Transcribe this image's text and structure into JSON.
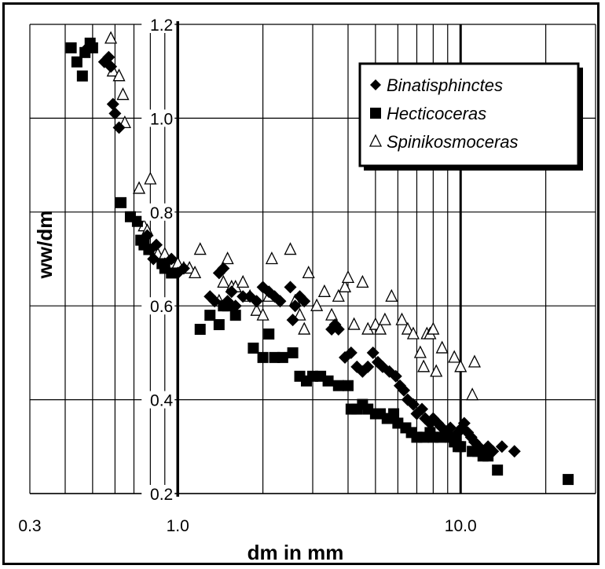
{
  "chart_data": {
    "type": "scatter",
    "x_scale": "log",
    "xlim": [
      0.3,
      30
    ],
    "ylim": [
      0.2,
      1.2
    ],
    "x_ticks": [
      {
        "value": 0.3,
        "label": "0.3"
      },
      {
        "value": 1.0,
        "label": "1.0"
      },
      {
        "value": 10.0,
        "label": "10.0"
      }
    ],
    "y_ticks": [
      {
        "value": 0.2,
        "label": "0.2"
      },
      {
        "value": 0.4,
        "label": "0.4"
      },
      {
        "value": 0.6,
        "label": "0.6"
      },
      {
        "value": 0.8,
        "label": "0.8"
      },
      {
        "value": 1.0,
        "label": "1.0"
      },
      {
        "value": 1.2,
        "label": "1.2"
      }
    ],
    "xlabel": "dm in mm",
    "ylabel": "ww/dm",
    "grid": true,
    "legend_position": "top-right",
    "series": [
      {
        "name": "Binatisphinctes",
        "marker": "diamond",
        "color": "#000000",
        "points": [
          [
            0.48,
            1.15
          ],
          [
            0.55,
            1.12
          ],
          [
            0.57,
            1.13
          ],
          [
            0.58,
            1.11
          ],
          [
            0.59,
            1.03
          ],
          [
            0.6,
            1.01
          ],
          [
            0.62,
            0.98
          ],
          [
            0.78,
            0.75
          ],
          [
            0.8,
            0.72
          ],
          [
            0.82,
            0.7
          ],
          [
            0.84,
            0.73
          ],
          [
            0.9,
            0.69
          ],
          [
            0.95,
            0.7
          ],
          [
            1.0,
            0.67
          ],
          [
            1.05,
            0.68
          ],
          [
            1.3,
            0.62
          ],
          [
            1.35,
            0.61
          ],
          [
            1.4,
            0.67
          ],
          [
            1.45,
            0.68
          ],
          [
            1.5,
            0.61
          ],
          [
            1.55,
            0.63
          ],
          [
            1.6,
            0.6
          ],
          [
            1.7,
            0.62
          ],
          [
            1.8,
            0.62
          ],
          [
            1.9,
            0.61
          ],
          [
            2.0,
            0.64
          ],
          [
            2.1,
            0.63
          ],
          [
            2.2,
            0.62
          ],
          [
            2.3,
            0.61
          ],
          [
            2.5,
            0.64
          ],
          [
            2.55,
            0.57
          ],
          [
            2.6,
            0.6
          ],
          [
            2.7,
            0.62
          ],
          [
            2.8,
            0.61
          ],
          [
            3.5,
            0.55
          ],
          [
            3.6,
            0.56
          ],
          [
            3.7,
            0.55
          ],
          [
            3.9,
            0.49
          ],
          [
            4.1,
            0.5
          ],
          [
            4.3,
            0.47
          ],
          [
            4.5,
            0.46
          ],
          [
            4.7,
            0.47
          ],
          [
            4.9,
            0.5
          ],
          [
            5.1,
            0.48
          ],
          [
            5.3,
            0.47
          ],
          [
            5.6,
            0.46
          ],
          [
            5.9,
            0.45
          ],
          [
            6.1,
            0.43
          ],
          [
            6.3,
            0.42
          ],
          [
            6.5,
            0.4
          ],
          [
            6.8,
            0.39
          ],
          [
            7.0,
            0.37
          ],
          [
            7.3,
            0.38
          ],
          [
            7.5,
            0.36
          ],
          [
            7.8,
            0.35
          ],
          [
            8.0,
            0.36
          ],
          [
            8.3,
            0.35
          ],
          [
            8.6,
            0.34
          ],
          [
            8.9,
            0.33
          ],
          [
            9.2,
            0.34
          ],
          [
            9.5,
            0.32
          ],
          [
            9.8,
            0.33
          ],
          [
            10.1,
            0.34
          ],
          [
            10.3,
            0.35
          ],
          [
            10.6,
            0.33
          ],
          [
            10.9,
            0.32
          ],
          [
            11.2,
            0.31
          ],
          [
            11.6,
            0.3
          ],
          [
            12.0,
            0.29
          ],
          [
            12.5,
            0.3
          ],
          [
            13.0,
            0.29
          ],
          [
            14.0,
            0.3
          ],
          [
            15.5,
            0.29
          ]
        ]
      },
      {
        "name": "Hecticoceras",
        "marker": "square",
        "color": "#000000",
        "points": [
          [
            0.42,
            1.15
          ],
          [
            0.44,
            1.12
          ],
          [
            0.46,
            1.09
          ],
          [
            0.47,
            1.14
          ],
          [
            0.49,
            1.16
          ],
          [
            0.5,
            1.15
          ],
          [
            0.63,
            0.82
          ],
          [
            0.68,
            0.79
          ],
          [
            0.72,
            0.78
          ],
          [
            0.74,
            0.74
          ],
          [
            0.76,
            0.73
          ],
          [
            0.79,
            0.72
          ],
          [
            0.88,
            0.69
          ],
          [
            0.9,
            0.68
          ],
          [
            0.95,
            0.67
          ],
          [
            1.2,
            0.55
          ],
          [
            1.3,
            0.58
          ],
          [
            1.4,
            0.56
          ],
          [
            1.45,
            0.6
          ],
          [
            1.5,
            0.6
          ],
          [
            1.6,
            0.58
          ],
          [
            1.85,
            0.51
          ],
          [
            2.0,
            0.49
          ],
          [
            2.1,
            0.54
          ],
          [
            2.2,
            0.49
          ],
          [
            2.35,
            0.49
          ],
          [
            2.55,
            0.5
          ],
          [
            2.7,
            0.45
          ],
          [
            2.85,
            0.44
          ],
          [
            3.0,
            0.45
          ],
          [
            3.2,
            0.45
          ],
          [
            3.4,
            0.44
          ],
          [
            3.7,
            0.43
          ],
          [
            4.0,
            0.43
          ],
          [
            4.1,
            0.38
          ],
          [
            4.3,
            0.38
          ],
          [
            4.5,
            0.39
          ],
          [
            4.7,
            0.38
          ],
          [
            5.0,
            0.37
          ],
          [
            5.2,
            0.37
          ],
          [
            5.5,
            0.36
          ],
          [
            5.8,
            0.37
          ],
          [
            6.0,
            0.35
          ],
          [
            6.4,
            0.34
          ],
          [
            6.7,
            0.33
          ],
          [
            7.0,
            0.32
          ],
          [
            7.4,
            0.32
          ],
          [
            7.8,
            0.33
          ],
          [
            8.0,
            0.32
          ],
          [
            8.5,
            0.32
          ],
          [
            9.2,
            0.32
          ],
          [
            9.5,
            0.31
          ],
          [
            9.8,
            0.3
          ],
          [
            10.0,
            0.3
          ],
          [
            11.0,
            0.29
          ],
          [
            11.5,
            0.29
          ],
          [
            12.0,
            0.28
          ],
          [
            12.5,
            0.28
          ],
          [
            13.5,
            0.25
          ],
          [
            24.0,
            0.23
          ]
        ]
      },
      {
        "name": "Spinikosmoceras",
        "marker": "triangle",
        "color": "#000000",
        "points": [
          [
            0.58,
            1.17
          ],
          [
            0.59,
            1.1
          ],
          [
            0.62,
            1.09
          ],
          [
            0.64,
            1.05
          ],
          [
            0.65,
            0.99
          ],
          [
            0.73,
            0.85
          ],
          [
            0.76,
            0.77
          ],
          [
            0.78,
            0.76
          ],
          [
            0.8,
            0.87
          ],
          [
            0.82,
            0.72
          ],
          [
            0.85,
            0.71
          ],
          [
            0.9,
            0.71
          ],
          [
            0.95,
            0.69
          ],
          [
            1.0,
            0.69
          ],
          [
            1.05,
            0.68
          ],
          [
            1.1,
            0.68
          ],
          [
            1.15,
            0.67
          ],
          [
            1.2,
            0.72
          ],
          [
            1.4,
            0.61
          ],
          [
            1.45,
            0.65
          ],
          [
            1.5,
            0.7
          ],
          [
            1.55,
            0.64
          ],
          [
            1.6,
            0.64
          ],
          [
            1.7,
            0.65
          ],
          [
            1.8,
            0.62
          ],
          [
            1.9,
            0.59
          ],
          [
            2.0,
            0.58
          ],
          [
            2.1,
            0.62
          ],
          [
            2.15,
            0.7
          ],
          [
            2.5,
            0.72
          ],
          [
            2.6,
            0.61
          ],
          [
            2.7,
            0.58
          ],
          [
            2.8,
            0.55
          ],
          [
            2.9,
            0.67
          ],
          [
            3.1,
            0.6
          ],
          [
            3.3,
            0.63
          ],
          [
            3.5,
            0.58
          ],
          [
            3.7,
            0.62
          ],
          [
            3.9,
            0.64
          ],
          [
            4.0,
            0.66
          ],
          [
            4.2,
            0.56
          ],
          [
            4.5,
            0.65
          ],
          [
            4.7,
            0.55
          ],
          [
            5.0,
            0.56
          ],
          [
            5.2,
            0.55
          ],
          [
            5.4,
            0.57
          ],
          [
            5.7,
            0.62
          ],
          [
            6.2,
            0.57
          ],
          [
            6.5,
            0.55
          ],
          [
            6.8,
            0.54
          ],
          [
            7.2,
            0.5
          ],
          [
            7.4,
            0.47
          ],
          [
            7.6,
            0.54
          ],
          [
            7.8,
            0.54
          ],
          [
            8.0,
            0.55
          ],
          [
            8.2,
            0.46
          ],
          [
            8.6,
            0.51
          ],
          [
            9.5,
            0.49
          ],
          [
            10.0,
            0.47
          ],
          [
            11.0,
            0.41
          ],
          [
            11.2,
            0.48
          ]
        ]
      }
    ]
  }
}
